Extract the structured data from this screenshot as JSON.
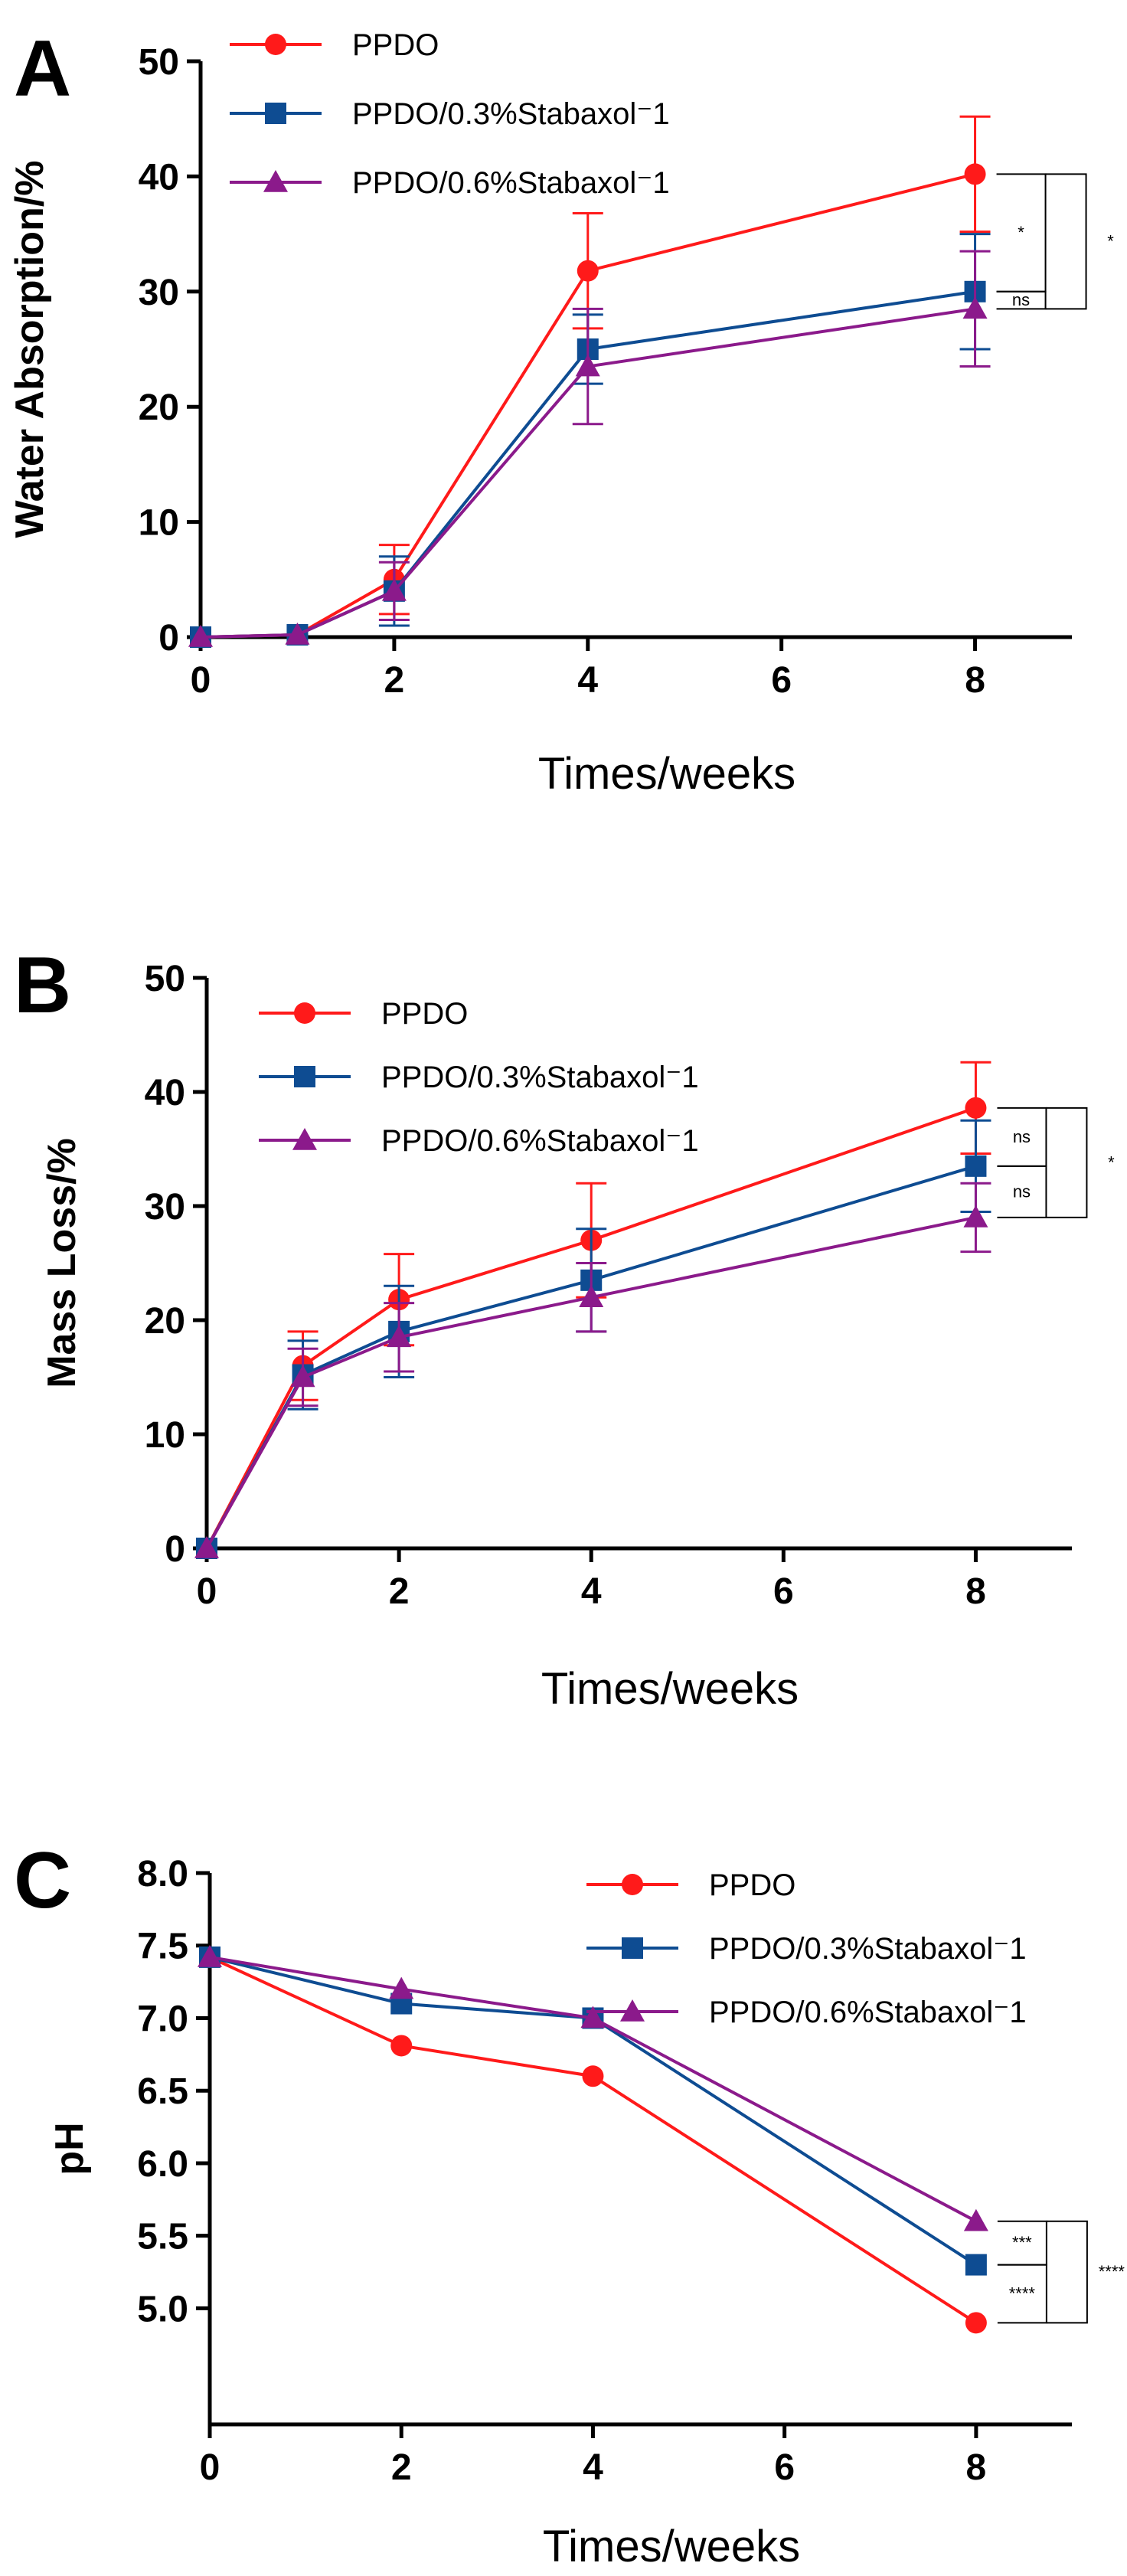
{
  "chart_data": [
    {
      "panel_label": "A",
      "type": "line",
      "xlabel": "Times/weeks",
      "ylabel": "Water Absorption/%",
      "xlim": [
        0,
        9
      ],
      "ylim": [
        0,
        50
      ],
      "xticks": [
        0,
        2,
        4,
        6,
        8
      ],
      "yticks": [
        0,
        10,
        20,
        30,
        40,
        50
      ],
      "legend_position": "top-left",
      "series": [
        {
          "name": "PPDO",
          "color": "#ff1a1a",
          "marker": "circle",
          "x": [
            0,
            1,
            2,
            4,
            8
          ],
          "y": [
            0,
            0.2,
            5,
            31.8,
            40.2
          ],
          "err": [
            0,
            0,
            3,
            5,
            5
          ]
        },
        {
          "name": "PPDO/0.3%Stabaxol⁻1",
          "color": "#0e4c92",
          "marker": "square",
          "x": [
            0,
            1,
            2,
            4,
            8
          ],
          "y": [
            0,
            0.2,
            4,
            25,
            30
          ],
          "err": [
            0,
            0,
            3,
            3,
            5
          ]
        },
        {
          "name": "PPDO/0.6%Stabaxol⁻1",
          "color": "#8b1a8b",
          "marker": "triangle",
          "x": [
            0,
            1,
            2,
            4,
            8
          ],
          "y": [
            0,
            0.2,
            4,
            23.5,
            28.5
          ],
          "err": [
            0,
            0,
            2.5,
            5,
            5
          ]
        }
      ],
      "significance": [
        {
          "between": [
            0,
            1
          ],
          "label": "*",
          "level": 1
        },
        {
          "between": [
            1,
            2
          ],
          "label": "ns",
          "level": 1
        },
        {
          "between": [
            0,
            2
          ],
          "label": "*",
          "level": 2
        }
      ]
    },
    {
      "panel_label": "B",
      "type": "line",
      "xlabel": "Times/weeks",
      "ylabel": "Mass Loss/%",
      "xlim": [
        0,
        9
      ],
      "ylim": [
        0,
        50
      ],
      "xticks": [
        0,
        2,
        4,
        6,
        8
      ],
      "yticks": [
        0,
        10,
        20,
        30,
        40,
        50
      ],
      "legend_position": "top-left",
      "series": [
        {
          "name": "PPDO",
          "color": "#ff1a1a",
          "marker": "circle",
          "x": [
            0,
            1,
            2,
            4,
            8
          ],
          "y": [
            0,
            16,
            21.8,
            27,
            38.6
          ],
          "err": [
            0,
            3,
            4,
            5,
            4
          ]
        },
        {
          "name": "PPDO/0.3%Stabaxol⁻1",
          "color": "#0e4c92",
          "marker": "square",
          "x": [
            0,
            1,
            2,
            4,
            8
          ],
          "y": [
            0,
            15.2,
            19,
            23.5,
            33.5
          ],
          "err": [
            0,
            3,
            4,
            4.5,
            4
          ]
        },
        {
          "name": "PPDO/0.6%Stabaxol⁻1",
          "color": "#8b1a8b",
          "marker": "triangle",
          "x": [
            0,
            1,
            2,
            4,
            8
          ],
          "y": [
            0,
            15,
            18.5,
            22,
            29
          ],
          "err": [
            0,
            2.5,
            3,
            3,
            3
          ]
        }
      ],
      "significance": [
        {
          "between": [
            0,
            1
          ],
          "label": "ns",
          "level": 1
        },
        {
          "between": [
            1,
            2
          ],
          "label": "ns",
          "level": 1
        },
        {
          "between": [
            0,
            2
          ],
          "label": "*",
          "level": 2
        }
      ]
    },
    {
      "panel_label": "C",
      "type": "line",
      "xlabel": "Times/weeks",
      "ylabel": "pH",
      "xlim": [
        0,
        9
      ],
      "ylim": [
        4.2,
        8.0
      ],
      "xticks": [
        0,
        2,
        4,
        6,
        8
      ],
      "yticks": [
        5.0,
        5.5,
        6.0,
        6.5,
        7.0,
        7.5,
        8.0
      ],
      "ytick_labels": [
        "5.0",
        "5.5",
        "6.0",
        "6.5",
        "7.0",
        "7.5",
        "8.0"
      ],
      "legend_position": "top-right",
      "series": [
        {
          "name": "PPDO",
          "color": "#ff1a1a",
          "marker": "circle",
          "x": [
            0,
            2,
            4,
            8
          ],
          "y": [
            7.42,
            6.81,
            6.6,
            4.9
          ]
        },
        {
          "name": "PPDO/0.3%Stabaxol⁻1",
          "color": "#0e4c92",
          "marker": "square",
          "x": [
            0,
            2,
            4,
            8
          ],
          "y": [
            7.42,
            7.1,
            7.0,
            5.3
          ]
        },
        {
          "name": "PPDO/0.6%Stabaxol⁻1",
          "color": "#8b1a8b",
          "marker": "triangle",
          "x": [
            0,
            2,
            4,
            8
          ],
          "y": [
            7.42,
            7.2,
            7.0,
            5.6
          ]
        }
      ],
      "significance": [
        {
          "between": [
            1,
            2
          ],
          "label": "***",
          "level": 1
        },
        {
          "between": [
            0,
            1
          ],
          "label": "****",
          "level": 1
        },
        {
          "between": [
            0,
            2
          ],
          "label": "****",
          "level": 2
        }
      ]
    }
  ]
}
